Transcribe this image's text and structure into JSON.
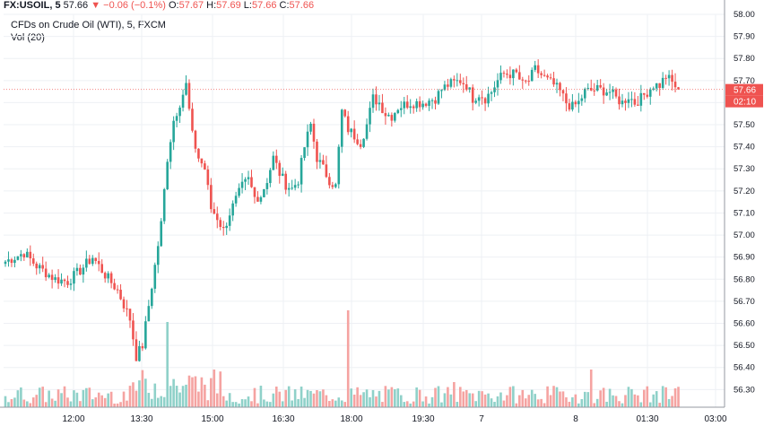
{
  "header": {
    "symbol": "FX:USOIL, 5",
    "last": "57.66",
    "arrow": "▼",
    "change": "−0.06 (−0.1%)",
    "o_label": "O:",
    "o_value": "57.67",
    "h_label": "H:",
    "h_value": "57.69",
    "l_label": "L:",
    "l_value": "57.66",
    "c_label": "C:",
    "c_value": "57.66"
  },
  "legend": {
    "series_title": "CFDs on Crude Oil (WTI), 5, FXCM",
    "volume_title": "Vol (20)"
  },
  "price_tag": {
    "value": "57.66",
    "countdown": "02:10"
  },
  "colors": {
    "up": "#26a69a",
    "down": "#ef5350",
    "vol_up": "#8fd1c9",
    "vol_down": "#f5a3a1",
    "grid": "#eef0f4",
    "axis": "#9598a1",
    "price_line": "#ef5350"
  },
  "chart_data": {
    "type": "candlestick",
    "y_axis": {
      "min": 56.22,
      "max": 58.0,
      "ticks": [
        "58.00",
        "57.90",
        "57.80",
        "57.70",
        "57.60",
        "57.50",
        "57.40",
        "57.30",
        "57.20",
        "57.10",
        "57.00",
        "56.90",
        "56.80",
        "56.70",
        "56.60",
        "56.50",
        "56.40",
        "56.30"
      ]
    },
    "x_axis": {
      "labels": [
        "12:00",
        "13:30",
        "15:00",
        "16:30",
        "18:00",
        "19:30",
        "7",
        "8",
        "01:30",
        "03:00"
      ]
    },
    "grid": true,
    "last_price": 57.66,
    "candles_anchors": [
      [
        0,
        56.88
      ],
      [
        6,
        56.92
      ],
      [
        10,
        56.86
      ],
      [
        16,
        56.8
      ],
      [
        20,
        56.79
      ],
      [
        24,
        56.84
      ],
      [
        28,
        56.9
      ],
      [
        32,
        56.82
      ],
      [
        36,
        56.75
      ],
      [
        40,
        56.62
      ],
      [
        42,
        56.45
      ],
      [
        44,
        56.5
      ],
      [
        46,
        56.68
      ],
      [
        48,
        56.86
      ],
      [
        50,
        57.05
      ],
      [
        52,
        57.35
      ],
      [
        54,
        57.52
      ],
      [
        56,
        57.6
      ],
      [
        58,
        57.68
      ],
      [
        60,
        57.45
      ],
      [
        62,
        57.35
      ],
      [
        64,
        57.3
      ],
      [
        66,
        57.12
      ],
      [
        68,
        57.08
      ],
      [
        70,
        57.02
      ],
      [
        72,
        57.1
      ],
      [
        74,
        57.16
      ],
      [
        76,
        57.22
      ],
      [
        78,
        57.25
      ],
      [
        80,
        57.17
      ],
      [
        82,
        57.18
      ],
      [
        84,
        57.25
      ],
      [
        86,
        57.35
      ],
      [
        88,
        57.28
      ],
      [
        90,
        57.23
      ],
      [
        92,
        57.21
      ],
      [
        94,
        57.25
      ],
      [
        96,
        57.4
      ],
      [
        98,
        57.5
      ],
      [
        100,
        57.35
      ],
      [
        102,
        57.3
      ],
      [
        104,
        57.25
      ],
      [
        106,
        57.22
      ],
      [
        108,
        57.56
      ],
      [
        110,
        57.48
      ],
      [
        112,
        57.45
      ],
      [
        114,
        57.42
      ],
      [
        116,
        57.5
      ],
      [
        118,
        57.62
      ],
      [
        120,
        57.6
      ],
      [
        122,
        57.55
      ],
      [
        124,
        57.54
      ],
      [
        126,
        57.58
      ],
      [
        130,
        57.6
      ],
      [
        134,
        57.6
      ],
      [
        138,
        57.62
      ],
      [
        140,
        57.66
      ],
      [
        142,
        57.68
      ],
      [
        146,
        57.7
      ],
      [
        148,
        57.68
      ],
      [
        150,
        57.62
      ],
      [
        152,
        57.64
      ],
      [
        154,
        57.62
      ],
      [
        156,
        57.65
      ],
      [
        158,
        57.7
      ],
      [
        160,
        57.73
      ],
      [
        164,
        57.73
      ],
      [
        166,
        57.68
      ],
      [
        168,
        57.7
      ],
      [
        170,
        57.75
      ],
      [
        174,
        57.7
      ],
      [
        176,
        57.68
      ],
      [
        178,
        57.65
      ],
      [
        180,
        57.6
      ],
      [
        182,
        57.58
      ],
      [
        184,
        57.6
      ],
      [
        186,
        57.65
      ],
      [
        190,
        57.66
      ],
      [
        194,
        57.65
      ],
      [
        196,
        57.62
      ],
      [
        198,
        57.6
      ],
      [
        200,
        57.63
      ],
      [
        202,
        57.6
      ],
      [
        204,
        57.62
      ],
      [
        206,
        57.65
      ],
      [
        208,
        57.68
      ],
      [
        210,
        57.68
      ],
      [
        212,
        57.72
      ],
      [
        214,
        57.69
      ],
      [
        216,
        57.66
      ]
    ]
  }
}
